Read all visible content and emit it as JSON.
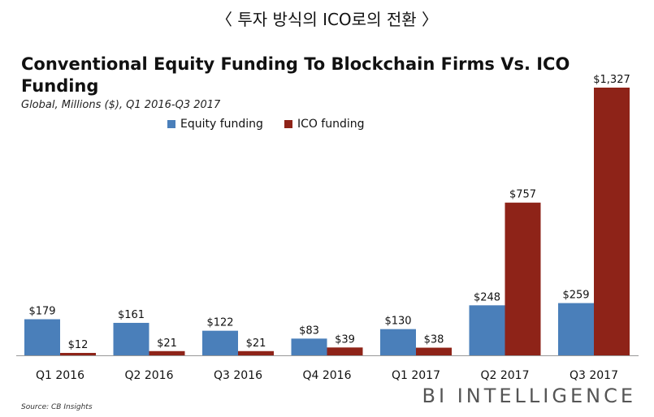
{
  "header": {
    "korean_title": "〈 투자 방식의 ICO로의 전환 〉"
  },
  "chart_data": {
    "type": "bar",
    "title": "Conventional Equity Funding To Blockchain Firms Vs. ICO Funding",
    "subtitle": "Global, Millions ($), Q1 2016-Q3 2017",
    "categories": [
      "Q1 2016",
      "Q2 2016",
      "Q3 2016",
      "Q4 2016",
      "Q1 2017",
      "Q2 2017",
      "Q3 2017"
    ],
    "series": [
      {
        "name": "Equity funding",
        "color": "#4a7fba",
        "values": [
          179,
          161,
          122,
          83,
          130,
          248,
          259
        ],
        "labels": [
          "$179",
          "$161",
          "$122",
          "$83",
          "$130",
          "$248",
          "$259"
        ]
      },
      {
        "name": "ICO funding",
        "color": "#8e2318",
        "values": [
          12,
          21,
          21,
          39,
          38,
          757,
          1327
        ],
        "labels": [
          "$12",
          "$21",
          "$21",
          "$39",
          "$38",
          "$757",
          "$1,327"
        ]
      }
    ],
    "ylim": [
      0,
      1327
    ],
    "grid": false,
    "legend": "top-left"
  },
  "footer": {
    "source": "Source: CB Insights",
    "brand": "BI INTELLIGENCE"
  }
}
